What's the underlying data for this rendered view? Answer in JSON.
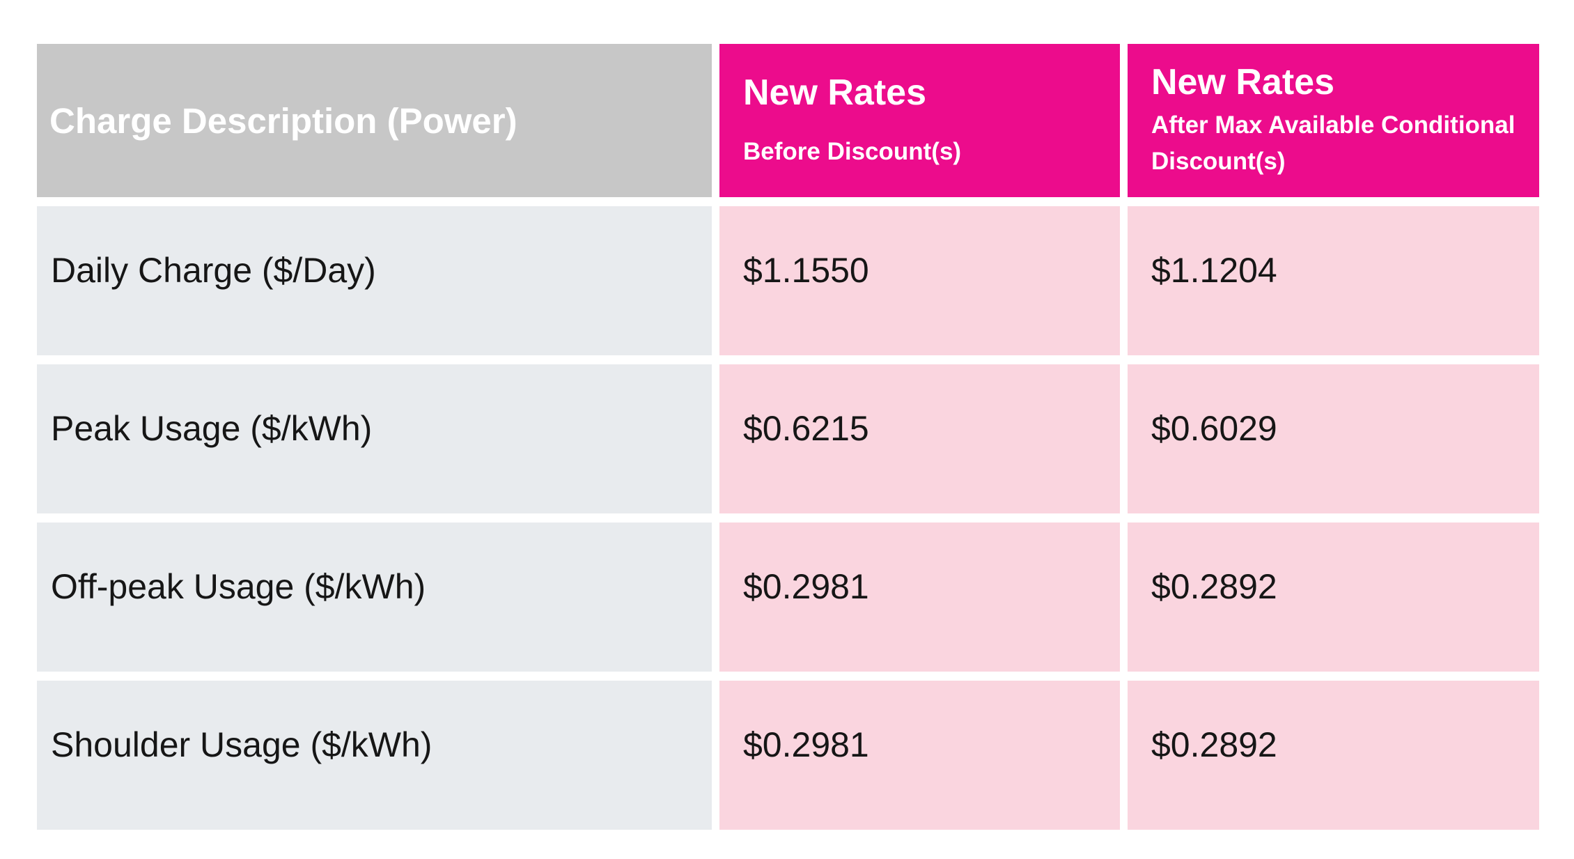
{
  "table": {
    "colors": {
      "header_gray": "#C7C7C7",
      "header_magenta": "#EC0C8C",
      "label_cell_bg": "#E8EBEE",
      "value_cell_bg": "#FAD5DF",
      "header_text": "#FFFFFF",
      "body_text": "#161616"
    },
    "columns": [
      {
        "title": "Charge Description (Power)",
        "subtitle": ""
      },
      {
        "title": "New Rates",
        "subtitle": "Before Discount(s)"
      },
      {
        "title": "New Rates",
        "subtitle": "After Max Available Conditional Discount(s)"
      }
    ],
    "rows": [
      {
        "label": "Daily Charge ($/Day)",
        "before": "$1.1550",
        "after": "$1.1204"
      },
      {
        "label": "Peak Usage ($/kWh)",
        "before": "$0.6215",
        "after": "$0.6029"
      },
      {
        "label": "Off-peak Usage ($/kWh)",
        "before": "$0.2981",
        "after": "$0.2892"
      },
      {
        "label": "Shoulder Usage ($/kWh)",
        "before": "$0.2981",
        "after": "$0.2892"
      }
    ]
  },
  "chart_data": {
    "type": "table",
    "title": "Charge Description (Power)",
    "columns": [
      "Charge Description (Power)",
      "New Rates Before Discount(s)",
      "New Rates After Max Available Conditional Discount(s)"
    ],
    "rows": [
      [
        "Daily Charge ($/Day)",
        1.155,
        1.1204
      ],
      [
        "Peak Usage ($/kWh)",
        0.6215,
        0.6029
      ],
      [
        "Off-peak Usage ($/kWh)",
        0.2981,
        0.2892
      ],
      [
        "Shoulder Usage ($/kWh)",
        0.2981,
        0.2892
      ]
    ],
    "units": "USD-style $ per Day / per kWh"
  }
}
